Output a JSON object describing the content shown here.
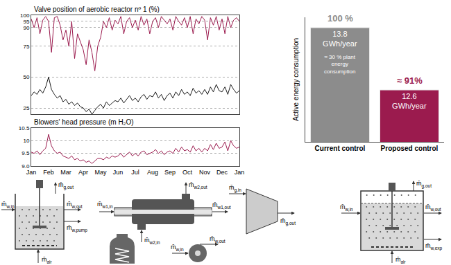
{
  "chart_data": [
    {
      "type": "line",
      "title": "Valve position of aerobic reactor nº 1 (%)",
      "categories": [
        "Jan",
        null,
        null,
        null,
        null,
        null,
        "Feb",
        null,
        null,
        null,
        null,
        null,
        "Mar",
        null,
        null,
        null,
        null,
        null,
        "Apr",
        null,
        null,
        null,
        null,
        null,
        "May",
        null,
        null,
        null,
        null,
        null,
        "Jun",
        null,
        null,
        null,
        null,
        null,
        "Jul",
        null,
        null,
        null,
        null,
        null,
        "Aug",
        null,
        null,
        null,
        null,
        null,
        "Sep",
        null,
        null,
        null,
        null,
        null,
        "Oct",
        null,
        null,
        null,
        null,
        null,
        "Nov",
        null,
        null,
        null,
        null,
        null,
        "Dec",
        null,
        null,
        null,
        null,
        null,
        "Jan"
      ],
      "series": [
        {
          "color": "#9b1b4e",
          "values": [
            97,
            90,
            98,
            85,
            96,
            99,
            95,
            70,
            98,
            99,
            92,
            80,
            88,
            75,
            95,
            65,
            85,
            78,
            72,
            60,
            80,
            70,
            55,
            75,
            82,
            95,
            90,
            98,
            88,
            96,
            93,
            99,
            85,
            95,
            98,
            90,
            96,
            88,
            99,
            92,
            97,
            85,
            95,
            98,
            90,
            99,
            96,
            93,
            97,
            88,
            99,
            95,
            92,
            98,
            90,
            99,
            85,
            97,
            93,
            99,
            96,
            80,
            98,
            92,
            99,
            88,
            97,
            85,
            99,
            90,
            96,
            98,
            95
          ]
        },
        {
          "color": "#1a1a1a",
          "values": [
            35,
            38,
            36,
            40,
            37,
            42,
            50,
            40,
            36,
            33,
            35,
            30,
            32,
            28,
            30,
            27,
            29,
            26,
            25,
            22,
            24,
            20,
            23,
            26,
            28,
            25,
            30,
            27,
            29,
            31,
            30,
            33,
            29,
            32,
            35,
            31,
            33,
            30,
            34,
            36,
            32,
            35,
            34,
            38,
            33,
            36,
            31,
            35,
            37,
            33,
            38,
            35,
            40,
            36,
            38,
            35,
            41,
            37,
            39,
            36,
            40,
            36,
            42,
            38,
            44,
            39,
            38,
            42,
            36,
            44,
            40,
            37,
            39
          ]
        }
      ],
      "ylim": [
        20,
        100
      ],
      "yticks": [
        25,
        50,
        75,
        90,
        95,
        100
      ],
      "grid": true,
      "tick_labels": "y"
    },
    {
      "type": "line",
      "title": "Blowers' head pressure (m H₂O)",
      "categories": [
        "Jan",
        null,
        null,
        null,
        null,
        null,
        "Feb",
        null,
        null,
        null,
        null,
        null,
        "Mar",
        null,
        null,
        null,
        null,
        null,
        "Apr",
        null,
        null,
        null,
        null,
        null,
        "May",
        null,
        null,
        null,
        null,
        null,
        "Jun",
        null,
        null,
        null,
        null,
        null,
        "Jul",
        null,
        null,
        null,
        null,
        null,
        "Aug",
        null,
        null,
        null,
        null,
        null,
        "Sep",
        null,
        null,
        null,
        null,
        null,
        "Oct",
        null,
        null,
        null,
        null,
        null,
        "Nov",
        null,
        null,
        null,
        null,
        null,
        "Dec",
        null,
        null,
        null,
        null,
        null,
        "Jan"
      ],
      "series": [
        {
          "color": "#9b1b4e",
          "values": [
            9.55,
            9.5,
            9.6,
            9.45,
            9.6,
            9.7,
            10.25,
            9.8,
            9.6,
            9.5,
            9.55,
            9.4,
            9.35,
            9.3,
            9.4,
            9.25,
            9.3,
            9.2,
            9.25,
            9.15,
            9.2,
            9.1,
            9.2,
            9.3,
            9.3,
            9.25,
            9.35,
            9.3,
            9.4,
            9.35,
            9.4,
            9.5,
            9.35,
            9.45,
            9.55,
            9.4,
            9.5,
            9.4,
            9.55,
            9.6,
            9.45,
            9.5,
            9.55,
            9.65,
            9.5,
            9.6,
            9.45,
            9.55,
            9.6,
            9.5,
            9.7,
            9.55,
            9.75,
            9.6,
            9.65,
            9.55,
            9.8,
            9.6,
            9.7,
            9.55,
            9.7,
            9.6,
            9.85,
            9.65,
            9.9,
            9.7,
            9.75,
            9.95,
            9.6,
            10.0,
            9.8,
            9.7,
            9.75
          ]
        }
      ],
      "ylim": [
        9,
        10.5
      ],
      "yticks": [
        {
          "value": 9,
          "label": "9.0"
        },
        9.5,
        10,
        10.5
      ],
      "grid": true
    },
    {
      "type": "bar",
      "ylabel": "Active energy consumption",
      "categories": [
        "Current control",
        "Proposed control"
      ],
      "values": [
        13.8,
        12.6
      ],
      "value_labels": [
        "13.8 GWh/year",
        "12.6 GWh/year"
      ],
      "colors": [
        "#8c8c8c",
        "#9b1b4e"
      ],
      "data_labels": true,
      "ylim": [
        11.6,
        14
      ],
      "grid": false,
      "tick_labels": "x",
      "annotations": [
        {
          "category": "Current control",
          "text": "100 %"
        },
        {
          "category": "Proposed control",
          "text": "≈ 91%"
        }
      ],
      "notes": [
        {
          "category": "Current control",
          "text": "≈ 30 % plant energy consumption"
        }
      ]
    }
  ],
  "diagram": {
    "units": [
      {
        "labels": [
          {
            "m": "m̄",
            "sub": "w,in"
          },
          {
            "m": "m̄",
            "sub": "g,out"
          },
          {
            "m": "m̄",
            "sub": "w,out"
          },
          {
            "m": "m̄",
            "sub": "w,pump"
          },
          {
            "m": "m̄",
            "sub": "air"
          }
        ]
      },
      {
        "labels": [
          {
            "m": "m̄",
            "sub": "w1,in"
          },
          {
            "m": "m̄",
            "sub": "w2,out"
          },
          {
            "m": "m̄",
            "sub": "w1,out"
          },
          {
            "m": "m̄",
            "sub": "w2,in"
          }
        ]
      },
      {
        "labels": [
          {
            "m": "m̄",
            "sub": "g,in"
          },
          {
            "m": "m̄",
            "sub": "g,out"
          }
        ]
      },
      {
        "labels": [
          {
            "m": "m̄",
            "sub": "w,in"
          },
          {
            "m": "m̄",
            "sub": "w,out"
          }
        ]
      },
      {
        "labels": [
          {
            "m": "m̄",
            "sub": "w,in"
          },
          {
            "m": "m̄",
            "sub": "g,out"
          },
          {
            "m": "m̄",
            "sub": "w,out"
          },
          {
            "m": "m̄",
            "sub": "w,exp"
          },
          {
            "m": "m̄",
            "sub": "air"
          }
        ]
      }
    ]
  }
}
